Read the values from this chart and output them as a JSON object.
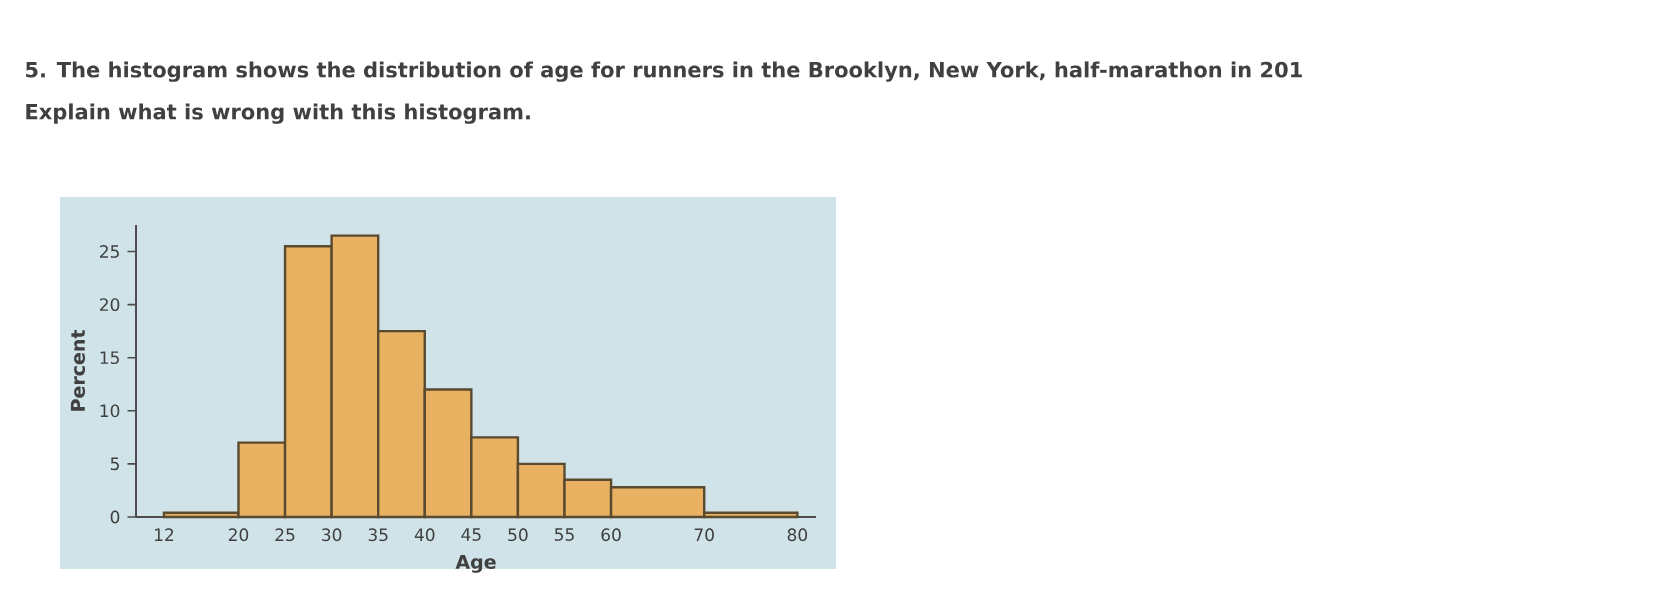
{
  "chart_data": {
    "type": "histogram",
    "title": "5. The histogram shows the distribution of age for runners in the Brooklyn, New York, half-marathon in 201",
    "subtitle": "Explain what is wrong with this histogram.",
    "xlabel": "Age",
    "ylabel": "Percent",
    "bins": [
      12,
      20,
      25,
      30,
      35,
      40,
      45,
      50,
      55,
      60,
      70,
      80
    ],
    "values": [
      0.4,
      7,
      25.5,
      26.5,
      17.5,
      12,
      7.5,
      5,
      3.5,
      2.8,
      0.4
    ],
    "color": "#e9b263",
    "xlim": [
      9,
      82
    ],
    "xticks": [
      12,
      20,
      25,
      30,
      35,
      40,
      45,
      50,
      55,
      60,
      70,
      80
    ],
    "ylim": [
      0,
      27.5
    ],
    "yticks": [
      0,
      5,
      10,
      15,
      20,
      25
    ],
    "grid": false
  }
}
